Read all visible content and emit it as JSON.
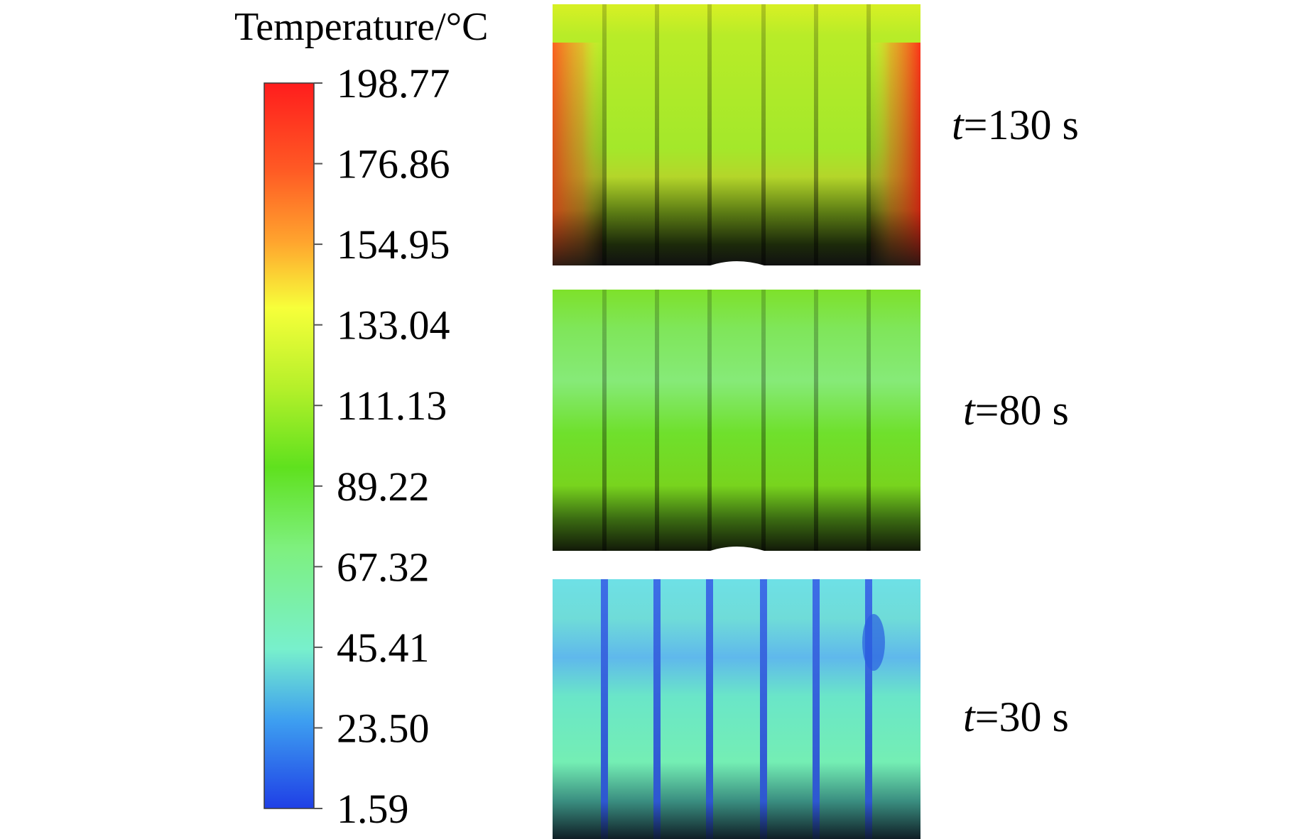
{
  "colorbar": {
    "title": "Temperature/°C",
    "ticks": [
      "198.77",
      "176.86",
      "154.95",
      "133.04",
      "111.13",
      "89.22",
      "67.32",
      "45.41",
      "23.50",
      "1.59"
    ],
    "colors": {
      "top": "#ff1d1d",
      "orange": "#ff8a2a",
      "yellow": "#f7ff3a",
      "green": "#5fe11e",
      "lightgreen": "#7ef07e",
      "cyan": "#78f0cc",
      "blue": "#3d8cf0",
      "bottom": "#1f3fe6"
    }
  },
  "snapshots": [
    {
      "t_label": "t",
      "value": "=130 s",
      "temperature_range": "hot"
    },
    {
      "t_label": "t",
      "value": "=80 s",
      "temperature_range": "warm"
    },
    {
      "t_label": "t",
      "value": "=30 s",
      "temperature_range": "cool"
    }
  ]
}
